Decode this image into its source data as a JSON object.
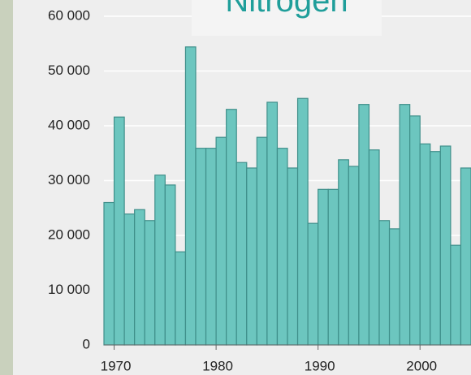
{
  "chart_data": {
    "type": "bar",
    "title": "Nitrogen",
    "x": [
      1969,
      1970,
      1971,
      1972,
      1973,
      1974,
      1975,
      1976,
      1977,
      1978,
      1979,
      1980,
      1981,
      1982,
      1983,
      1984,
      1985,
      1986,
      1987,
      1988,
      1989,
      1990,
      1991,
      1992,
      1993,
      1994,
      1995,
      1996,
      1997,
      1998,
      1999,
      2000,
      2001,
      2002,
      2003,
      2004
    ],
    "values": [
      26000,
      41600,
      23900,
      24700,
      22700,
      31000,
      29200,
      17000,
      54400,
      35900,
      35900,
      37900,
      43000,
      33300,
      32300,
      37900,
      44300,
      35900,
      32300,
      45000,
      22200,
      28400,
      28400,
      33800,
      32600,
      43900,
      35600,
      22700,
      21200,
      43900,
      41800,
      36700,
      35300,
      36300,
      18200,
      32300
    ],
    "color": "#6cc6bf",
    "xlim": [
      1969,
      2005
    ],
    "xticks": [
      1970,
      1980,
      1990,
      2000
    ],
    "ylim": [
      0,
      60000
    ],
    "yticks": [
      0,
      {
        "value": 10000,
        "label": "10 000"
      },
      {
        "value": 20000,
        "label": "20 000"
      },
      {
        "value": 30000,
        "label": "30 000"
      },
      {
        "value": 40000,
        "label": "40 000"
      },
      {
        "value": 50000,
        "label": "50 000"
      },
      {
        "value": 60000,
        "label": "60 000"
      }
    ],
    "grid": true
  }
}
